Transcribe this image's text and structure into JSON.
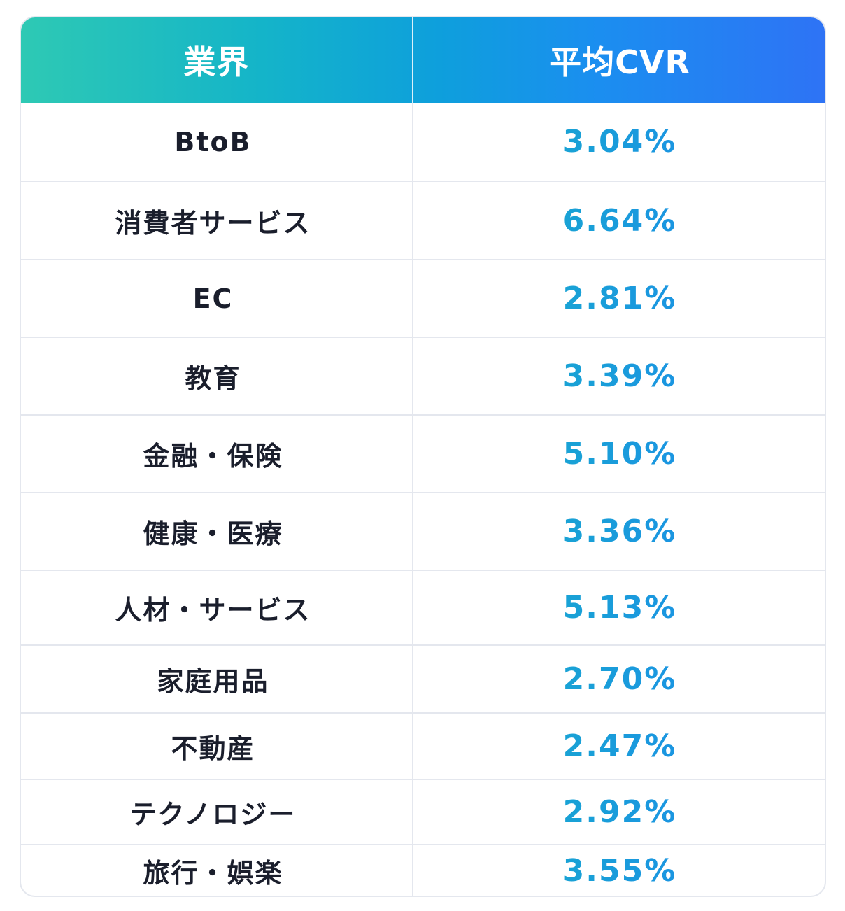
{
  "table": {
    "headers": {
      "industry": "業界",
      "avg_cvr": "平均CVR"
    },
    "rows": [
      {
        "industry": "BtoB",
        "cvr": "3.04%"
      },
      {
        "industry": "消費者サービス",
        "cvr": "6.64%"
      },
      {
        "industry": "EC",
        "cvr": "2.81%"
      },
      {
        "industry": "教育",
        "cvr": "3.39%"
      },
      {
        "industry": "金融・保険",
        "cvr": "5.10%"
      },
      {
        "industry": "健康・医療",
        "cvr": "3.36%"
      },
      {
        "industry": "人材・サービス",
        "cvr": "5.13%"
      },
      {
        "industry": "家庭用品",
        "cvr": "2.70%"
      },
      {
        "industry": "不動産",
        "cvr": "2.47%"
      },
      {
        "industry": "テクノロジー",
        "cvr": "2.92%"
      },
      {
        "industry": "旅行・娯楽",
        "cvr": "3.55%"
      }
    ]
  },
  "colors": {
    "header_gradient_start": "#2ec9b4",
    "header_gradient_end": "#2e73f5",
    "cvr_text": "#1aa3d3",
    "industry_text": "#1a1e2c",
    "border": "#e4e7ee"
  }
}
